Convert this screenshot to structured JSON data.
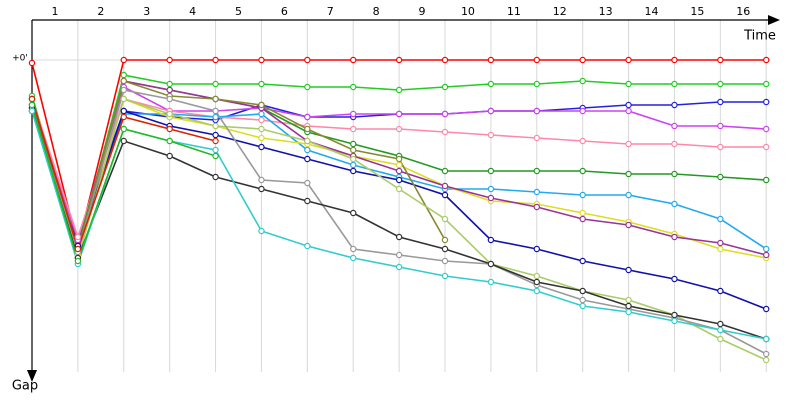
{
  "chart_data": {
    "type": "line",
    "x_label": "Time",
    "y_label": "Gap",
    "x": [
      0,
      1,
      2,
      3,
      4,
      5,
      6,
      7,
      8,
      9,
      10,
      11,
      12,
      13,
      14,
      15,
      16
    ],
    "xlim": [
      0,
      16.3
    ],
    "xticks": [
      {
        "value": 0.5,
        "label": "1"
      },
      {
        "value": 1.5,
        "label": "2"
      },
      {
        "value": 2.5,
        "label": "3"
      },
      {
        "value": 3.5,
        "label": "4"
      },
      {
        "value": 4.5,
        "label": "5"
      },
      {
        "value": 5.5,
        "label": "6"
      },
      {
        "value": 6.5,
        "label": "7"
      },
      {
        "value": 7.5,
        "label": "8"
      },
      {
        "value": 8.5,
        "label": "9"
      },
      {
        "value": 9.5,
        "label": "10"
      },
      {
        "value": 10.5,
        "label": "11"
      },
      {
        "value": 11.5,
        "label": "12"
      },
      {
        "value": 12.5,
        "label": "13"
      },
      {
        "value": 13.5,
        "label": "14"
      },
      {
        "value": 14.5,
        "label": "15"
      },
      {
        "value": 15.5,
        "label": "16"
      }
    ],
    "ylim": [
      -13,
      107
    ],
    "y_inverted": true,
    "yticks": [
      {
        "value": 0,
        "label": "+0'"
      }
    ],
    "grid": true,
    "series": [
      {
        "color": "#ff0000",
        "values": [
          1,
          62,
          0,
          0,
          0,
          0,
          0,
          0,
          0,
          0,
          0,
          0,
          0,
          0,
          0,
          0,
          0
        ]
      },
      {
        "color": "#22cc22",
        "values": [
          12,
          63,
          5,
          8,
          8,
          8,
          9,
          9,
          10,
          9,
          8,
          8,
          7,
          8,
          8,
          8,
          8
        ]
      },
      {
        "color": "#2222dd",
        "values": [
          13,
          60,
          17,
          19,
          20,
          15,
          19,
          19,
          18,
          18,
          17,
          17,
          16,
          15,
          15,
          14,
          14
        ]
      },
      {
        "color": "#cc44ee",
        "values": [
          13,
          60,
          9,
          17,
          17,
          16,
          19,
          18,
          18,
          18,
          17,
          17,
          17,
          17,
          22,
          22,
          23
        ]
      },
      {
        "color": "#ff88aa",
        "values": [
          13,
          59,
          13,
          17,
          19,
          20,
          22,
          23,
          23,
          24,
          25,
          26,
          27,
          28,
          28,
          29,
          29
        ]
      },
      {
        "color": "#229922",
        "values": [
          15,
          62,
          7,
          10,
          13,
          16,
          24,
          28,
          32,
          37,
          37,
          37,
          37,
          38,
          38,
          39,
          40
        ]
      },
      {
        "color": "#22aaee",
        "values": [
          17,
          63,
          18,
          18,
          19,
          18,
          30,
          35,
          39,
          43,
          43,
          44,
          45,
          45,
          48,
          53,
          63
        ]
      },
      {
        "color": "#dddd22",
        "values": [
          17,
          65,
          13,
          19,
          22,
          26,
          28,
          32,
          35,
          42,
          47,
          48,
          51,
          54,
          58,
          63,
          66
        ]
      },
      {
        "color": "#993399",
        "values": [
          15,
          63,
          7,
          10,
          13,
          16,
          27,
          32,
          37,
          42,
          46,
          49,
          53,
          55,
          59,
          61,
          65
        ]
      },
      {
        "color": "#1111aa",
        "values": [
          17,
          62,
          17,
          22,
          25,
          29,
          33,
          37,
          40,
          45,
          60,
          63,
          67,
          70,
          73,
          77,
          83
        ]
      },
      {
        "color": "#888833",
        "values": [
          13,
          63,
          7,
          12,
          13,
          15,
          23,
          30,
          33,
          60,
          null,
          null,
          null,
          null,
          null,
          null,
          null
        ]
      },
      {
        "color": "#aacc66",
        "values": [
          16,
          66,
          13,
          18,
          22,
          23,
          27,
          33,
          43,
          53,
          68,
          72,
          77,
          80,
          85,
          93,
          100
        ]
      },
      {
        "color": "#999999",
        "values": [
          16,
          64,
          10,
          13,
          17,
          40,
          41,
          63,
          65,
          67,
          68,
          75,
          80,
          83,
          86,
          90,
          98
        ]
      },
      {
        "color": "#333333",
        "values": [
          16,
          66,
          27,
          32,
          39,
          43,
          47,
          51,
          59,
          63,
          68,
          74,
          77,
          82,
          85,
          88,
          93
        ]
      },
      {
        "color": "#33cccc",
        "values": [
          17,
          68,
          23,
          27,
          30,
          57,
          62,
          66,
          69,
          72,
          74,
          77,
          82,
          84,
          87,
          90,
          93
        ]
      },
      {
        "color": "#dd2200",
        "values": [
          13,
          63,
          19,
          23,
          27,
          null,
          null,
          null,
          null,
          null,
          null,
          null,
          null,
          null,
          null,
          null,
          null
        ]
      },
      {
        "color": "#22bb22",
        "values": [
          15,
          67,
          23,
          27,
          32,
          null,
          null,
          null,
          null,
          null,
          null,
          null,
          null,
          null,
          null,
          null,
          null
        ]
      }
    ]
  }
}
